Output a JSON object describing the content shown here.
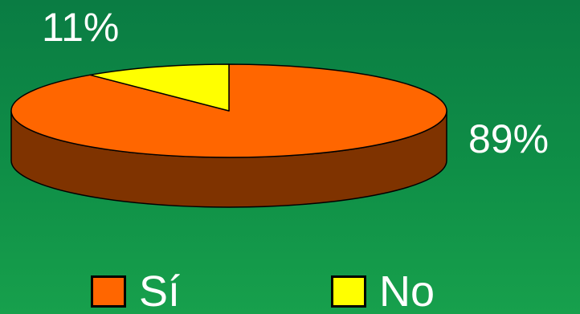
{
  "chart_data": {
    "type": "pie",
    "style": "3d",
    "categories": [
      "Sí",
      "No"
    ],
    "values": [
      89,
      11
    ],
    "value_labels": [
      "89%",
      "11%"
    ],
    "colors": {
      "Sí": "#ff6600",
      "Sí_side": "#7f3300",
      "No": "#ffff00",
      "No_side": "#808000"
    },
    "legend": {
      "placement": "bottom",
      "items": [
        {
          "label": "Sí",
          "color": "#ff6600"
        },
        {
          "label": "No",
          "color": "#ffff00"
        }
      ]
    },
    "background": "#0f8f47"
  }
}
